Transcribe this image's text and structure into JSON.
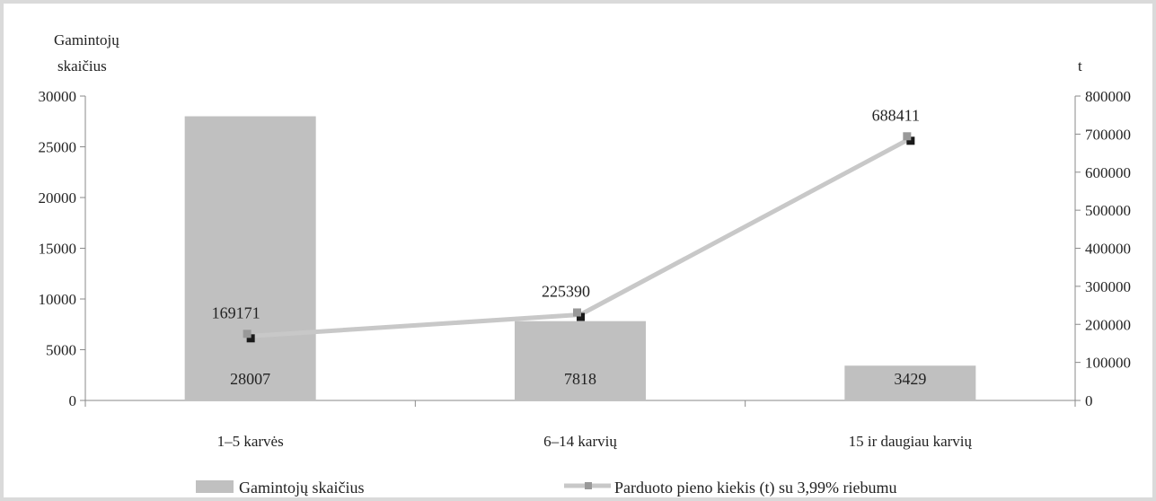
{
  "chart_data": {
    "type": "bar",
    "categories": [
      "1–5 karvės",
      "6–14 karvių",
      "15 ir daugiau karvių"
    ],
    "ylabel": [
      "Gamintojų",
      "skaičius"
    ],
    "y2label": "t",
    "ylim": [
      0,
      30000
    ],
    "y2lim": [
      0,
      800000
    ],
    "yticks": [
      "0",
      "5000",
      "10000",
      "15000",
      "20000",
      "25000",
      "30000"
    ],
    "y2ticks": [
      "0",
      "100000",
      "200000",
      "300000",
      "400000",
      "500000",
      "600000",
      "700000",
      "800000"
    ],
    "series": [
      {
        "name": "Gamintojų skaičius",
        "type": "bar",
        "axis": "left",
        "values": [
          28007,
          7818,
          3429
        ],
        "labels": [
          "28007",
          "7818",
          "3429"
        ],
        "color": "#c0c0c0"
      },
      {
        "name": "Parduoto pieno kiekis (t) su 3,99% riebumu",
        "type": "line",
        "axis": "right",
        "values": [
          169171,
          225390,
          688411
        ],
        "labels": [
          "169171",
          "225390",
          "688411"
        ],
        "color": "#c8c8c8",
        "marker_color": "#999999"
      }
    ],
    "grid": false,
    "legend": "bottom"
  }
}
